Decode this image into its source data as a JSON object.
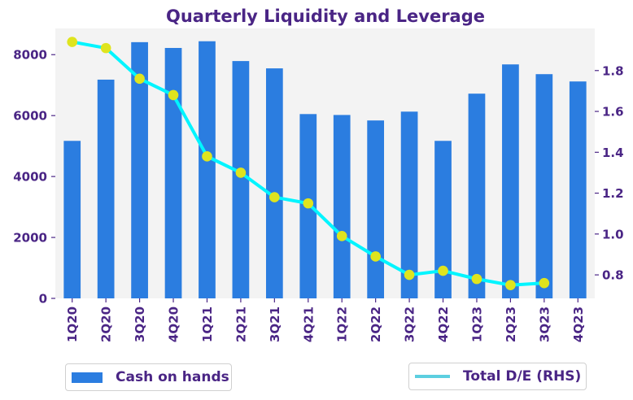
{
  "chart_data": {
    "type": "bar+line",
    "title": "Quarterly Liquidity and Leverage",
    "categories": [
      "1Q20",
      "2Q20",
      "3Q20",
      "4Q20",
      "1Q21",
      "2Q21",
      "3Q21",
      "4Q21",
      "1Q22",
      "2Q22",
      "3Q22",
      "4Q22",
      "1Q23",
      "2Q23",
      "3Q23",
      "4Q23"
    ],
    "series": [
      {
        "name": "Cash on hands",
        "type": "bar",
        "axis": "left",
        "color": "#2b7de0",
        "values": [
          5170,
          7180,
          8410,
          8220,
          8440,
          7790,
          7550,
          6050,
          6020,
          5840,
          6130,
          5170,
          6720,
          7680,
          7360,
          7120
        ]
      },
      {
        "name": "Total D/E (RHS)",
        "type": "line",
        "axis": "right",
        "color": "#00f5ff",
        "marker_color": "#dfe41e",
        "legend_color": "#5ccfe0",
        "values": [
          1.94,
          1.91,
          1.76,
          1.68,
          1.38,
          1.3,
          1.18,
          1.15,
          0.99,
          0.89,
          0.8,
          0.82,
          0.78,
          0.75,
          0.76,
          null
        ]
      }
    ],
    "xlabel": "",
    "ylabel_left": "",
    "ylabel_right": "",
    "ylim_left": [
      0,
      8860
    ],
    "ylim_right": [
      0.685,
      2.006
    ],
    "yticks_left": [
      0,
      2000,
      4000,
      6000,
      8000
    ],
    "yticks_right": [
      0.8,
      1.0,
      1.2,
      1.4,
      1.6,
      1.8
    ],
    "ytick_labels_right": [
      "0.8",
      "1.0",
      "1.2",
      "1.4",
      "1.6",
      "1.8"
    ],
    "grid": false,
    "background": "#f3f3f3",
    "legend": [
      {
        "label": "Cash on hands",
        "placement": "bottom-left"
      },
      {
        "label": "Total D/E (RHS)",
        "placement": "bottom-right"
      }
    ]
  }
}
